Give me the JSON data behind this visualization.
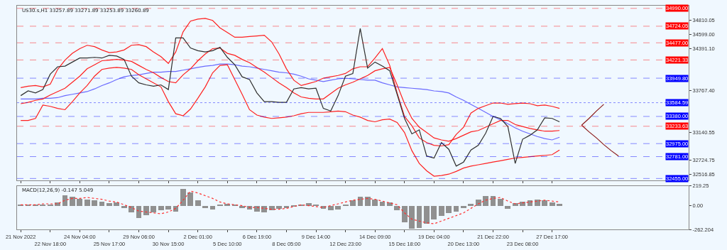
{
  "chart_data": [
    {
      "type": "line",
      "title": "US30.s,H1 33257.89 33271.89 33253.89 33260.89",
      "grid": false,
      "tick_labels": "y",
      "categories": [
        "21 Nov 2022",
        null,
        null,
        null,
        "22 Nov 18:00",
        null,
        null,
        null,
        "24 Nov 04:00",
        null,
        null,
        null,
        "25 Nov 17:00",
        null,
        null,
        null,
        "29 Nov 06:00",
        null,
        null,
        null,
        "30 Nov 15:00",
        null,
        null,
        null,
        "2 Dec 01:00",
        null,
        null,
        null,
        "5 Dec 10:00",
        null,
        null,
        null,
        "6 Dec 19:00",
        null,
        null,
        null,
        "8 Dec 05:00",
        null,
        null,
        null,
        "9 Dec 14:00",
        null,
        null,
        null,
        "12 Dec 23:00",
        null,
        null,
        null,
        "14 Dec 09:00",
        null,
        null,
        null,
        "15 Dec 18:00",
        null,
        null,
        null,
        "19 Dec 04:00",
        null,
        null,
        null,
        "20 Dec 13:00",
        null,
        null,
        null,
        "21 Dec 22:00",
        null,
        null,
        null,
        "23 Dec 08:00",
        null,
        null,
        null,
        "27 Dec 17:00",
        null,
        null,
        null,
        null,
        null,
        null,
        null,
        null,
        null,
        null,
        null,
        null,
        null,
        null,
        null,
        null,
        null,
        null
      ],
      "ylim": [
        32430,
        35030
      ],
      "yticks": [
        34810.05,
        {
          "value": 34599.0,
          "label": "34599.00"
        },
        {
          "value": 34391.1,
          "label": "34391.10"
        },
        {
          "value": 33767.4,
          "label": "33767.40"
        },
        33140.55,
        32724.75,
        32516.85
      ],
      "ref_lines": [
        {
          "axis": "y",
          "value": 34990.0,
          "label": "34990.00",
          "color": "#ff0000",
          "line_style": "dashed"
        },
        {
          "axis": "y",
          "value": 34724.05,
          "label": "34724.05",
          "color": "#ff0000",
          "line_style": "dashed"
        },
        {
          "axis": "y",
          "value": 34477.0,
          "label": "34477.00",
          "color": "#ff0000",
          "line_style": "dashed"
        },
        {
          "axis": "y",
          "value": 34221.33,
          "label": "34221.33",
          "color": "#ff0000",
          "line_style": "dashed"
        },
        {
          "axis": "y",
          "value": 33949.8,
          "label": "33949.80",
          "color": "#0000ff",
          "line_style": "dashed"
        },
        {
          "axis": "y",
          "value": 33584.59,
          "label": "33584.59",
          "color": "#0000ff",
          "line_style": "dotted"
        },
        {
          "axis": "y",
          "value": 33380.0,
          "label": "33380.00",
          "color": "#0000ff",
          "line_style": "dashed"
        },
        {
          "axis": "y",
          "value": 33233.63,
          "label": "33233.63",
          "color": "#ff0000",
          "line_style": "dashed"
        },
        {
          "axis": "y",
          "value": 32975.0,
          "label": "32975.00",
          "color": "#0000ff",
          "line_style": "dashed"
        },
        {
          "axis": "y",
          "value": 32781.0,
          "label": "32781.00",
          "color": "#0000ff",
          "line_style": "dashed"
        },
        {
          "axis": "y",
          "value": 32455.0,
          "label": "32455.00",
          "color": "#0000ff",
          "line_style": "dashed"
        }
      ],
      "series": [
        {
          "color": "#6a6aff",
          "values": [
            33640,
            33640,
            33640,
            33650,
            33650,
            33660,
            33690,
            33710,
            33730,
            33750,
            33790,
            33840,
            33880,
            33930,
            33970,
            33990,
            34000,
            34020,
            34040,
            34040,
            34050,
            34050,
            34070,
            34090,
            34110,
            34130,
            34140,
            34160,
            34160,
            34150,
            34130,
            34120,
            34100,
            34080,
            34060,
            34040,
            34030,
            34010,
            33980,
            33940,
            33920,
            33900,
            33920,
            33940,
            33950,
            33940,
            33930,
            33920,
            33920,
            33880,
            33850,
            33820,
            33810,
            33800,
            33790,
            33780,
            33760,
            33750,
            33730,
            33670,
            33620,
            33560,
            33500,
            33440,
            33380,
            33330,
            33270,
            33210,
            33160,
            33120,
            33080,
            33050,
            33030,
            33070,
            null,
            null,
            null,
            null,
            null,
            null,
            null,
            null,
            null,
            null,
            null,
            null,
            null,
            null,
            null,
            null,
            null
          ]
        },
        {
          "color": "#ff2020",
          "values": [
            33810,
            33830,
            33840,
            33820,
            33860,
            34080,
            34220,
            34320,
            34390,
            34440,
            34420,
            34370,
            34330,
            34340,
            34370,
            34440,
            34450,
            34420,
            34340,
            34270,
            34170,
            34340,
            34640,
            34800,
            34830,
            34840,
            34810,
            34700,
            34630,
            34560,
            34560,
            34570,
            34580,
            34590,
            34490,
            34310,
            34090,
            33920,
            33840,
            33870,
            33900,
            33950,
            33970,
            33990,
            34020,
            34090,
            34120,
            34120,
            34250,
            34390,
            34140,
            33730,
            33380,
            33240,
            33060,
            32990,
            32950,
            32940,
            32960,
            33110,
            33220,
            33430,
            33500,
            33540,
            33580,
            33580,
            33560,
            33570,
            33580,
            33570,
            33540,
            33550,
            33530,
            33500,
            null,
            null,
            null,
            null,
            null,
            null,
            null,
            null,
            null,
            null,
            null,
            null,
            null,
            null,
            null,
            null,
            null
          ]
        },
        {
          "color": "#ff2020",
          "values": [
            33570,
            33590,
            33620,
            33640,
            33700,
            33750,
            33800,
            33890,
            33980,
            34090,
            34150,
            34210,
            34220,
            34230,
            34220,
            34200,
            34140,
            34080,
            34030,
            33960,
            33900,
            33880,
            34000,
            34090,
            34210,
            34310,
            34390,
            34400,
            34320,
            34290,
            34230,
            34180,
            34110,
            34040,
            33960,
            33880,
            33810,
            33730,
            33670,
            33650,
            33640,
            33640,
            33720,
            33800,
            33850,
            33890,
            33940,
            33990,
            34060,
            34090,
            34110,
            33850,
            33570,
            33350,
            33220,
            33140,
            33060,
            33030,
            33010,
            33050,
            33100,
            33150,
            33170,
            33220,
            33270,
            33320,
            33320,
            33260,
            33230,
            33200,
            33180,
            33160,
            33160,
            33170,
            null,
            null,
            null,
            null,
            null,
            null,
            null,
            null,
            null,
            null,
            null,
            null,
            null,
            null,
            null,
            null,
            null
          ]
        },
        {
          "color": "#ff2020",
          "values": [
            33320,
            33320,
            33350,
            33550,
            33530,
            33500,
            33480,
            33600,
            33730,
            33840,
            33980,
            34080,
            34100,
            34110,
            34100,
            34080,
            34000,
            33940,
            33880,
            33820,
            33600,
            33420,
            33390,
            33490,
            33650,
            33820,
            34030,
            34140,
            34150,
            33930,
            33710,
            33480,
            33400,
            33370,
            33350,
            33360,
            33370,
            33390,
            33420,
            33440,
            33440,
            33440,
            33450,
            33460,
            33450,
            33400,
            33370,
            33320,
            33300,
            33330,
            33340,
            33290,
            33140,
            32870,
            32680,
            32570,
            32490,
            32500,
            32520,
            32560,
            32610,
            32640,
            32660,
            32680,
            32700,
            32720,
            32740,
            32760,
            32770,
            32780,
            32790,
            32800,
            32810,
            32880,
            null,
            null,
            null,
            null,
            null,
            null,
            null,
            null,
            null,
            null,
            null,
            null,
            null,
            null,
            null,
            null,
            null
          ]
        },
        {
          "color": "#303030",
          "values": [
            33690,
            33760,
            33730,
            33780,
            34010,
            34120,
            34130,
            34190,
            34250,
            34250,
            34260,
            34250,
            34290,
            34280,
            34230,
            33980,
            33880,
            33850,
            33830,
            33850,
            33780,
            34550,
            34550,
            34400,
            34360,
            34340,
            34360,
            34410,
            34260,
            34150,
            33970,
            33930,
            33730,
            33600,
            33600,
            33590,
            33590,
            33790,
            33810,
            33790,
            33800,
            33500,
            33460,
            33690,
            33980,
            34020,
            34690,
            34100,
            34190,
            34130,
            34060,
            33710,
            33350,
            33120,
            33180,
            32790,
            32760,
            32990,
            32890,
            32640,
            32700,
            32880,
            32950,
            33130,
            33380,
            33350,
            33230,
            32680,
            33040,
            33100,
            33180,
            33360,
            33350,
            33300,
            null,
            null,
            null,
            null,
            null,
            null,
            null,
            null,
            null,
            null,
            null,
            null,
            null,
            null,
            null,
            null,
            null
          ]
        },
        {
          "color": "#8b1a1a",
          "values": [
            null,
            null,
            null,
            null,
            null,
            null,
            null,
            null,
            null,
            null,
            null,
            null,
            null,
            null,
            null,
            null,
            null,
            null,
            null,
            null,
            null,
            null,
            null,
            null,
            null,
            null,
            null,
            null,
            null,
            null,
            null,
            null,
            null,
            null,
            null,
            null,
            null,
            null,
            null,
            null,
            null,
            null,
            null,
            null,
            null,
            null,
            null,
            null,
            null,
            null,
            null,
            null,
            null,
            null,
            null,
            null,
            null,
            null,
            null,
            null,
            null,
            null,
            null,
            null,
            null,
            null,
            null,
            null,
            null,
            null,
            null,
            null,
            null,
            null,
            null,
            null,
            33250,
            33350,
            33460,
            33560,
            null,
            null,
            null,
            null,
            null,
            null,
            null,
            null,
            null,
            null,
            null
          ]
        },
        {
          "color": "#8b1a1a",
          "values": [
            null,
            null,
            null,
            null,
            null,
            null,
            null,
            null,
            null,
            null,
            null,
            null,
            null,
            null,
            null,
            null,
            null,
            null,
            null,
            null,
            null,
            null,
            null,
            null,
            null,
            null,
            null,
            null,
            null,
            null,
            null,
            null,
            null,
            null,
            null,
            null,
            null,
            null,
            null,
            null,
            null,
            null,
            null,
            null,
            null,
            null,
            null,
            null,
            null,
            null,
            null,
            null,
            null,
            null,
            null,
            null,
            null,
            null,
            null,
            null,
            null,
            null,
            null,
            null,
            null,
            null,
            null,
            null,
            null,
            null,
            null,
            null,
            null,
            null,
            null,
            null,
            33250,
            33150,
            33060,
            32960,
            32870,
            32790,
            null,
            null,
            null,
            null,
            null,
            null,
            null,
            null,
            null
          ]
        }
      ]
    },
    {
      "type": "bar",
      "title": "MACD(12,26,9) -0.147 5.049",
      "grid": false,
      "categories": [
        "21 Nov 2022",
        null,
        null,
        null,
        "22 Nov 18:00",
        null,
        null,
        null,
        "24 Nov 04:00",
        null,
        null,
        null,
        "25 Nov 17:00",
        null,
        null,
        null,
        "29 Nov 06:00",
        null,
        null,
        null,
        "30 Nov 15:00",
        null,
        null,
        null,
        "2 Dec 01:00",
        null,
        null,
        null,
        "5 Dec 10:00",
        null,
        null,
        null,
        "6 Dec 19:00",
        null,
        null,
        null,
        "8 Dec 05:00",
        null,
        null,
        null,
        "9 Dec 14:00",
        null,
        null,
        null,
        "12 Dec 23:00",
        null,
        null,
        null,
        "14 Dec 09:00",
        null,
        null,
        null,
        "15 Dec 18:00",
        null,
        null,
        null,
        "19 Dec 04:00",
        null,
        null,
        null,
        "20 Dec 13:00",
        null,
        null,
        null,
        "21 Dec 22:00",
        null,
        null,
        null,
        "23 Dec 08:00",
        null,
        null,
        null,
        "27 Dec 17:00",
        null,
        null,
        null,
        null,
        null,
        null,
        null,
        null,
        null,
        null,
        null,
        null,
        null,
        null,
        null,
        null,
        null,
        null
      ],
      "ylim": [
        -262.204,
        219.25
      ],
      "yticks": [
        219.25,
        {
          "value": 0,
          "label": "0.00"
        },
        -262.204
      ],
      "series": [
        {
          "color": "#909090",
          "values": [
            10,
            10,
            10,
            10,
            10,
            40,
            120,
            100,
            80,
            70,
            60,
            50,
            30,
            40,
            -20,
            -70,
            -130,
            -100,
            -70,
            -50,
            -40,
            -60,
            190,
            150,
            60,
            -20,
            -40,
            10,
            20,
            10,
            -20,
            -40,
            -60,
            -70,
            -50,
            -30,
            -20,
            -10,
            10,
            30,
            10,
            -30,
            -50,
            -40,
            10,
            60,
            100,
            100,
            70,
            50,
            40,
            -50,
            -180,
            -250,
            -240,
            -200,
            -150,
            -110,
            -80,
            -60,
            -20,
            20,
            70,
            110,
            110,
            80,
            -30,
            30,
            50,
            60,
            70,
            60,
            40,
            20,
            null,
            null,
            null,
            null,
            null,
            null,
            null,
            null,
            null,
            null,
            null,
            null,
            null,
            null,
            null,
            null,
            null
          ]
        },
        {
          "type": "line",
          "line_style": "dotted",
          "color": "#ff3030",
          "values": [
            10,
            10,
            10,
            20,
            20,
            20,
            60,
            80,
            80,
            90,
            80,
            70,
            50,
            40,
            10,
            -20,
            -60,
            -70,
            -80,
            -90,
            -70,
            -30,
            60,
            160,
            140,
            110,
            80,
            40,
            20,
            10,
            0,
            -20,
            -20,
            -30,
            -40,
            -40,
            -30,
            -10,
            10,
            0,
            -10,
            -20,
            0,
            20,
            40,
            60,
            70,
            80,
            70,
            50,
            30,
            10,
            -80,
            -150,
            -170,
            -190,
            -200,
            -170,
            -140,
            -110,
            -80,
            -30,
            20,
            60,
            80,
            90,
            50,
            20,
            30,
            40,
            50,
            60,
            50,
            40,
            null,
            null,
            null,
            null,
            null,
            null,
            null,
            null,
            null,
            null,
            null,
            null,
            null,
            null,
            null,
            null,
            null
          ]
        }
      ]
    }
  ]
}
